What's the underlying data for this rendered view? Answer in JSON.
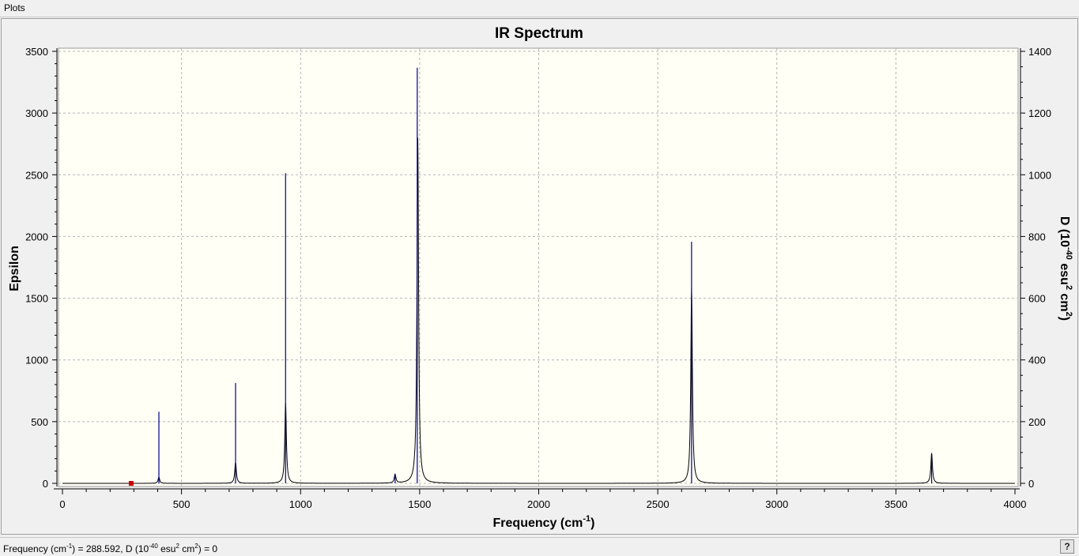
{
  "window": {
    "title": "Plots"
  },
  "status": {
    "freq_label": "Frequency (cm",
    "freq_exp": "-1",
    "freq_eq": ") = ",
    "freq_value": "288.592",
    "d_label": ", D (10",
    "d_exp": "-40",
    "d_unit_mid": " esu",
    "d_unit_exp": "2",
    "d_unit_cm": " cm",
    "d_unit_cm_exp": "2",
    "d_eq": ") = ",
    "d_value": "0",
    "help_label": "?"
  },
  "colors": {
    "plot_bg": "#fffff6",
    "spectrum": "#000000",
    "sticks": "#00008b",
    "marker": "#cc0000",
    "grid": "#b4b4b4"
  },
  "chart_data": {
    "type": "line",
    "title": "IR Spectrum",
    "xlabel": "Frequency",
    "xlabel_unit": "cm",
    "xlabel_unit_exp": "-1",
    "ylabel": "Epsilon",
    "y2label_parts": [
      "D (10",
      "-40",
      " esu",
      "2",
      " cm",
      "2",
      ")"
    ],
    "xlim": [
      0,
      4000
    ],
    "ylim": [
      0,
      3500
    ],
    "y2lim": [
      0,
      1400
    ],
    "xticks": [
      0,
      500,
      1000,
      1500,
      2000,
      2500,
      3000,
      3500,
      4000
    ],
    "yticks": [
      0,
      500,
      1000,
      1500,
      2000,
      2500,
      3000,
      3500
    ],
    "y2ticks": [
      0,
      200,
      400,
      600,
      800,
      1000,
      1200,
      1400
    ],
    "grid": true,
    "spectrum_peaks": [
      {
        "x": 405,
        "y": 50
      },
      {
        "x": 727,
        "y": 170
      },
      {
        "x": 937,
        "y": 650
      },
      {
        "x": 1397,
        "y": 70
      },
      {
        "x": 1492,
        "y": 2800
      },
      {
        "x": 2642,
        "y": 1580
      },
      {
        "x": 3650,
        "y": 245
      }
    ],
    "sticks_D": [
      {
        "x": 405,
        "d": 232
      },
      {
        "x": 727,
        "d": 325
      },
      {
        "x": 937,
        "d": 1005
      },
      {
        "x": 1397,
        "d": 28
      },
      {
        "x": 1490,
        "d": 1347
      },
      {
        "x": 2642,
        "d": 783
      },
      {
        "x": 3650,
        "d": 92
      }
    ],
    "marker": {
      "x": 288.592,
      "d": 0
    }
  }
}
